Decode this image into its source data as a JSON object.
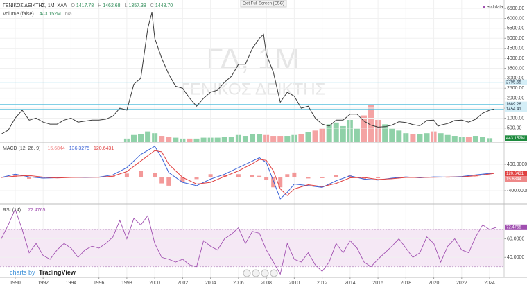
{
  "ui": {
    "exit": "Exit Full Screen (ESC)",
    "eod": "eod data",
    "credit": "charts by",
    "brand": "TradingView"
  },
  "chart_data": [
    {
      "type": "line",
      "title": "ΓΕΝΙΚΟΣ ΔΕΙΚΤΗΣ, 1M, XAA",
      "watermark": [
        "ΓΔ, 1M",
        "ΓΕΝΙΚΟΣ ΔΕΙΚΤΗΣ"
      ],
      "ohlc": [
        {
          "key": "O",
          "value": 1417.78
        },
        {
          "key": "H",
          "value": 1462.68
        },
        {
          "key": "L",
          "value": 1357.38
        },
        {
          "key": "C",
          "value": {
            "value": 1448.7,
            "label": "1448.70"
          }
        }
      ],
      "legend_color": "#2e8b57",
      "color": "#3a3a3a",
      "grid": true,
      "x": [
        1989,
        1989.5,
        1990,
        1990.5,
        1991,
        1991.5,
        1992,
        1992.5,
        1993,
        1993.5,
        1994,
        1994.5,
        1995,
        1995.5,
        1996,
        1996.5,
        1997,
        1997.5,
        1998,
        1998.5,
        1999,
        1999.5,
        1999.8,
        2000,
        2000.5,
        2001,
        2001.5,
        2002,
        2002.5,
        2003,
        2003.5,
        2004,
        2004.5,
        2005,
        2005.5,
        2006,
        2006.5,
        2007,
        2007.5,
        2007.8,
        2008,
        2008.5,
        2009,
        2009.5,
        2010,
        2010.5,
        2011,
        2011.5,
        2012,
        2012.5,
        2013,
        2013.5,
        2014,
        2014.5,
        2015,
        2015.5,
        2016,
        2016.5,
        2017,
        2017.5,
        2018,
        2018.5,
        2019,
        2019.5,
        2020,
        2020.3,
        2020.5,
        2021,
        2021.5,
        2022,
        2022.5,
        2023,
        2023.5,
        2024,
        2024.3
      ],
      "values": [
        200,
        400,
        1000,
        1400,
        900,
        1000,
        800,
        700,
        700,
        900,
        1000,
        800,
        850,
        900,
        900,
        950,
        1100,
        1500,
        1400,
        2700,
        3000,
        5500,
        6300,
        5000,
        4000,
        3200,
        2600,
        2500,
        2000,
        1600,
        2000,
        2300,
        2400,
        2800,
        3100,
        3700,
        3700,
        4500,
        5000,
        5200,
        4200,
        3300,
        1800,
        2300,
        2100,
        1500,
        1600,
        1000,
        700,
        600,
        900,
        900,
        1200,
        1200,
        850,
        650,
        550,
        570,
        650,
        820,
        780,
        680,
        620,
        880,
        900,
        600,
        650,
        730,
        880,
        900,
        800,
        950,
        1250,
        1400,
        1448.7
      ],
      "xlim": [
        1988.91,
        2025.04
      ],
      "xticks": [
        1990,
        1992,
        1994,
        1996,
        1998,
        2000,
        2002,
        2004,
        2006,
        2008,
        2010,
        2012,
        2014,
        2016,
        2018,
        2020,
        2022,
        2024
      ],
      "ylim": [
        -200,
        6920
      ],
      "yticks": [
        {
          "value": 500,
          "label": "500.00"
        },
        {
          "value": 1000,
          "label": "1000.00"
        },
        {
          "value": 1500,
          "label": "1500.00"
        },
        {
          "value": 2000,
          "label": "2000.00"
        },
        {
          "value": 2500,
          "label": "2500.00"
        },
        {
          "value": 3000,
          "label": "3000.00"
        },
        {
          "value": 3500,
          "label": "3500.00"
        },
        {
          "value": 4000,
          "label": "4000.00"
        },
        {
          "value": 4500,
          "label": "4500.00"
        },
        {
          "value": 5000,
          "label": "5000.00"
        },
        {
          "value": 5500,
          "label": "5500.00"
        },
        {
          "value": 6000,
          "label": "6000.00"
        },
        {
          "value": 6500,
          "label": "6500.00"
        }
      ],
      "levels": [
        2795.65,
        1689.26,
        1454.41
      ],
      "level_color": "#5bc0de"
    },
    {
      "type": "bar",
      "title": "Volume (false)",
      "last": {
        "value": 443152000,
        "label": "443.152M"
      },
      "status": "n/a",
      "tag_color": "#1e8a3e",
      "x": [
        1998,
        1998.5,
        1999,
        1999.5,
        2000,
        2000.5,
        2001,
        2001.5,
        2002,
        2002.5,
        2003,
        2003.5,
        2004,
        2004.5,
        2005,
        2005.5,
        2006,
        2006.5,
        2007,
        2007.5,
        2008,
        2008.5,
        2009,
        2009.5,
        2010,
        2010.5,
        2011,
        2011.5,
        2012,
        2012.5,
        2013,
        2013.5,
        2014,
        2014.5,
        2015,
        2015.5,
        2016,
        2016.5,
        2017,
        2017.5,
        2018,
        2018.5,
        2019,
        2019.5,
        2020,
        2020.5,
        2021,
        2021.5,
        2022,
        2022.5,
        2023,
        2023.5,
        2024
      ],
      "values": [
        400000000.0,
        800000000.0,
        900000000.0,
        1200000000.0,
        1000000000.0,
        700000000.0,
        600000000.0,
        500000000.0,
        400000000.0,
        400000000.0,
        400000000.0,
        500000000.0,
        500000000.0,
        500000000.0,
        600000000.0,
        600000000.0,
        800000000.0,
        700000000.0,
        900000000.0,
        900000000.0,
        800000000.0,
        700000000.0,
        700000000.0,
        700000000.0,
        800000000.0,
        900000000.0,
        1100000000.0,
        1300000000.0,
        1500000000.0,
        2000000000.0,
        2200000000.0,
        1800000000.0,
        2500000000.0,
        1500000000.0,
        3000000000.0,
        4200000000.0,
        2500000000.0,
        2000000000.0,
        1500000000.0,
        1300000000.0,
        1000000000.0,
        900000000.0,
        900000000.0,
        1000000000.0,
        1200000000.0,
        1000000000.0,
        800000000.0,
        700000000.0,
        600000000.0,
        600000000.0,
        700000000.0,
        600000000.0,
        443152000
      ],
      "colors": [
        "#8fd1a8",
        "#8fd1a8",
        "#8fd1a8",
        "#8fd1a8",
        "#8fd1a8",
        "#f4a3a3",
        "#f4a3a3",
        "#8fd1a8",
        "#8fd1a8",
        "#f4a3a3",
        "#8fd1a8",
        "#8fd1a8",
        "#8fd1a8",
        "#8fd1a8",
        "#8fd1a8",
        "#8fd1a8",
        "#8fd1a8",
        "#8fd1a8",
        "#8fd1a8",
        "#8fd1a8",
        "#f4a3a3",
        "#f4a3a3",
        "#f4a3a3",
        "#8fd1a8",
        "#8fd1a8",
        "#f4a3a3",
        "#8fd1a8",
        "#f4a3a3",
        "#f4a3a3",
        "#8fd1a8",
        "#8fd1a8",
        "#8fd1a8",
        "#8fd1a8",
        "#8fd1a8",
        "#f4a3a3",
        "#f4a3a3",
        "#f4a3a3",
        "#8fd1a8",
        "#8fd1a8",
        "#8fd1a8",
        "#8fd1a8",
        "#f4a3a3",
        "#8fd1a8",
        "#8fd1a8",
        "#f4a3a3",
        "#8fd1a8",
        "#8fd1a8",
        "#8fd1a8",
        "#8fd1a8",
        "#f4a3a3",
        "#8fd1a8",
        "#8fd1a8",
        "#8fd1a8"
      ],
      "ylim": [
        0,
        16000000000.0
      ]
    },
    {
      "type": "line",
      "title": "MACD (12, 26, 9)",
      "x": [
        1989,
        1990,
        1991,
        1992,
        1993,
        1994,
        1995,
        1996,
        1997,
        1998,
        1999,
        2000,
        2000.5,
        2001,
        2002,
        2003,
        2004,
        2005,
        2006,
        2007,
        2007.5,
        2008,
        2008.5,
        2009,
        2009.5,
        2010,
        2011,
        2012,
        2013,
        2014,
        2015,
        2016,
        2017,
        2018,
        2019,
        2020,
        2021,
        2022,
        2023,
        2024.3
      ],
      "histogram": {
        "color": "#f08080",
        "values": [
          0,
          60,
          -40,
          -30,
          5,
          10,
          -5,
          5,
          40,
          120,
          200,
          130,
          -180,
          -250,
          -150,
          -50,
          100,
          70,
          100,
          80,
          50,
          -70,
          -300,
          -300,
          100,
          150,
          -30,
          -20,
          80,
          60,
          -50,
          -20,
          20,
          20,
          -10,
          15,
          -5,
          10,
          30,
          15.6844
        ]
      },
      "series": [
        {
          "color": "#3a62d6",
          "values": [
            0,
            100,
            20,
            -20,
            -10,
            10,
            0,
            10,
            80,
            300,
            700,
            950,
            600,
            150,
            -150,
            -250,
            -50,
            100,
            300,
            500,
            600,
            450,
            -100,
            -650,
            -450,
            -200,
            -250,
            -300,
            -100,
            50,
            -50,
            -80,
            -20,
            20,
            -10,
            20,
            10,
            30,
            80,
            136.3275
          ]
        },
        {
          "color": "#e04040",
          "values": [
            0,
            40,
            60,
            10,
            -15,
            0,
            5,
            5,
            40,
            180,
            500,
            820,
            780,
            400,
            0,
            -200,
            -150,
            30,
            200,
            420,
            550,
            520,
            200,
            -350,
            -550,
            -350,
            -220,
            -280,
            -180,
            -10,
            0,
            -60,
            -40,
            0,
            0,
            5,
            15,
            20,
            50,
            120.6431
          ]
        }
      ],
      "ylim": [
        -779,
        1032
      ],
      "yticks": [
        {
          "value": -400,
          "label": "-400.0000"
        },
        {
          "value": 400,
          "label": "400.0000"
        }
      ]
    },
    {
      "type": "line",
      "title": "RSI (14)",
      "color": "#a04fb0",
      "band": [
        30,
        70
      ],
      "band_color": "#f5e8f5",
      "x": [
        1989,
        1989.5,
        1990,
        1990.5,
        1991,
        1991.5,
        1992,
        1992.5,
        1993,
        1993.5,
        1994,
        1994.5,
        1995,
        1995.5,
        1996,
        1996.5,
        1997,
        1997.5,
        1998,
        1998.5,
        1999,
        1999.5,
        2000,
        2000.5,
        2001,
        2001.5,
        2002,
        2002.5,
        2003,
        2003.5,
        2004,
        2004.5,
        2005,
        2005.5,
        2006,
        2006.5,
        2007,
        2007.5,
        2008,
        2008.5,
        2009,
        2009.5,
        2010,
        2010.5,
        2011,
        2011.5,
        2012,
        2012.5,
        2013,
        2013.5,
        2014,
        2014.5,
        2015,
        2015.5,
        2016,
        2016.5,
        2017,
        2017.5,
        2018,
        2018.5,
        2019,
        2019.5,
        2020,
        2020.5,
        2021,
        2021.5,
        2022,
        2022.5,
        2023,
        2023.5,
        2024,
        2024.5
      ],
      "values": [
        60,
        75,
        92,
        70,
        45,
        55,
        42,
        38,
        48,
        55,
        50,
        40,
        48,
        52,
        50,
        55,
        62,
        80,
        60,
        82,
        75,
        85,
        55,
        40,
        38,
        35,
        38,
        32,
        30,
        58,
        52,
        48,
        60,
        65,
        72,
        55,
        68,
        66,
        48,
        35,
        22,
        55,
        38,
        35,
        45,
        32,
        25,
        35,
        55,
        45,
        58,
        50,
        35,
        30,
        38,
        45,
        52,
        60,
        50,
        40,
        45,
        62,
        55,
        35,
        52,
        60,
        48,
        45,
        62,
        75,
        70,
        72.4765
      ],
      "ylim": [
        19.3,
        97
      ],
      "yticks": [
        {
          "value": 40,
          "label": "40.0000"
        },
        {
          "value": 60,
          "label": "60.0000"
        }
      ]
    }
  ]
}
